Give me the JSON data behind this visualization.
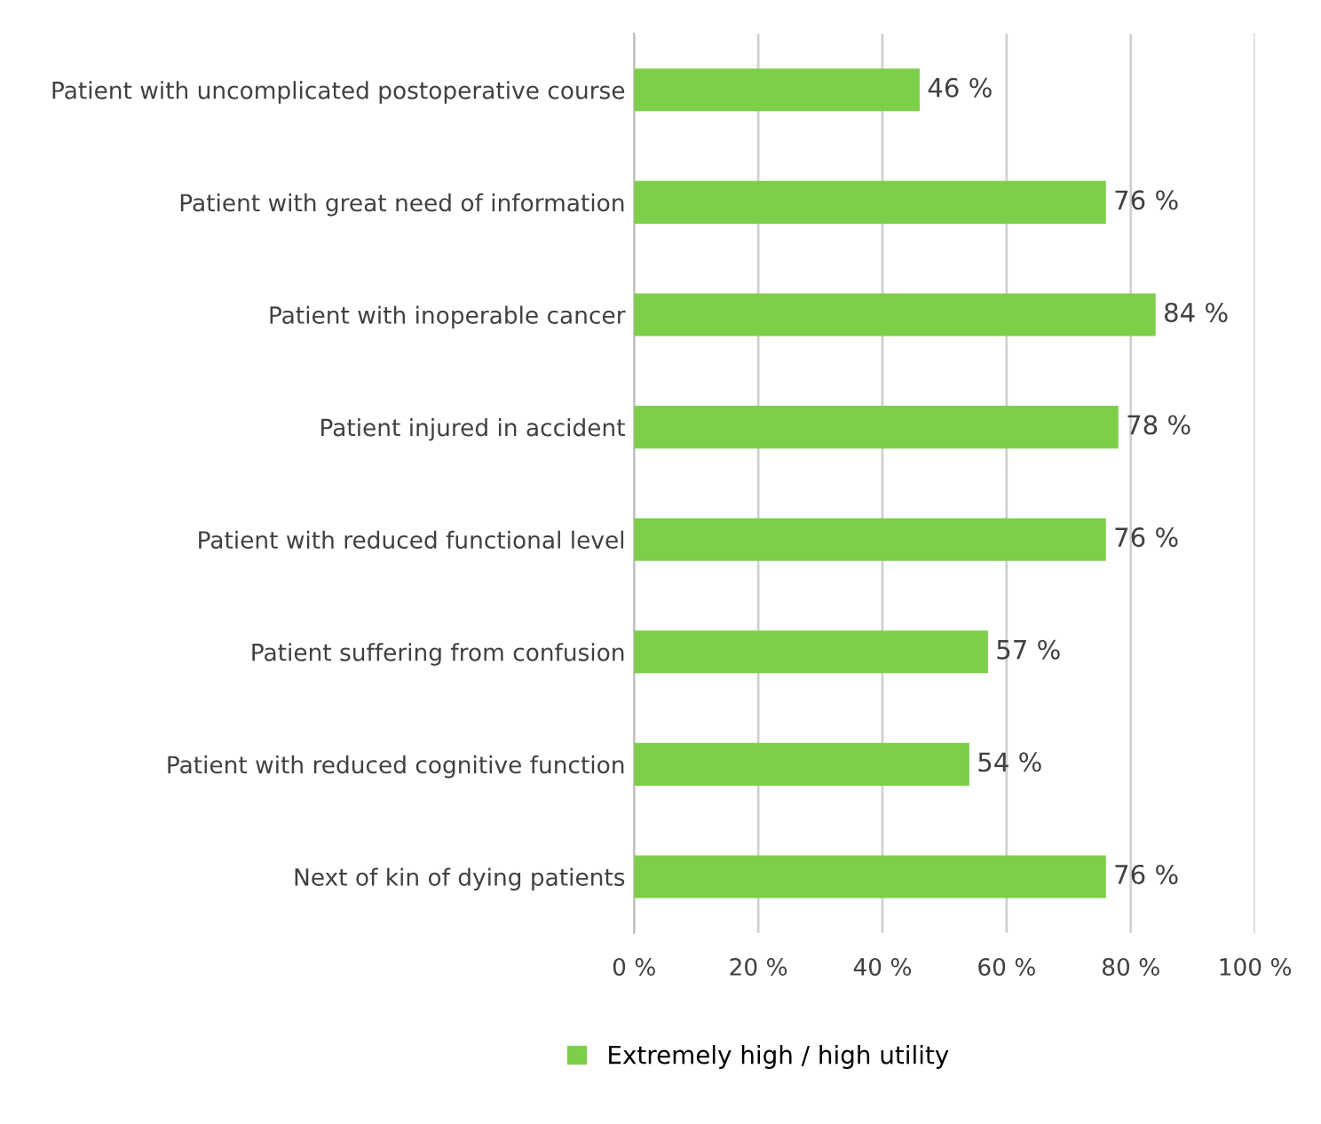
{
  "chart_data": {
    "type": "bar",
    "orientation": "horizontal",
    "categories": [
      "Patient with uncomplicated postoperative course",
      "Patient with great need of information",
      "Patient with inoperable cancer",
      "Patient injured in accident",
      "Patient with reduced functional level",
      "Patient suffering from confusion",
      "Patient with reduced cognitive function",
      "Next of kin of dying patients"
    ],
    "series": [
      {
        "name": "Extremely high / high utility",
        "color": "#7dce48",
        "values": [
          46,
          76,
          84,
          78,
          76,
          57,
          54,
          76
        ],
        "value_labels": [
          "46 %",
          "76 %",
          "84 %",
          "78 %",
          "76 %",
          "57 %",
          "54 %",
          "76 %"
        ]
      }
    ],
    "xlim": [
      0,
      100
    ],
    "xticks": [
      {
        "value": 0,
        "label": "0 %"
      },
      {
        "value": 20,
        "label": "20 %"
      },
      {
        "value": 40,
        "label": "40 %"
      },
      {
        "value": 60,
        "label": "60 %"
      },
      {
        "value": 80,
        "label": "80 %"
      },
      {
        "value": 100,
        "label": "100 %"
      }
    ],
    "grid": "x",
    "legend": "bottom"
  }
}
